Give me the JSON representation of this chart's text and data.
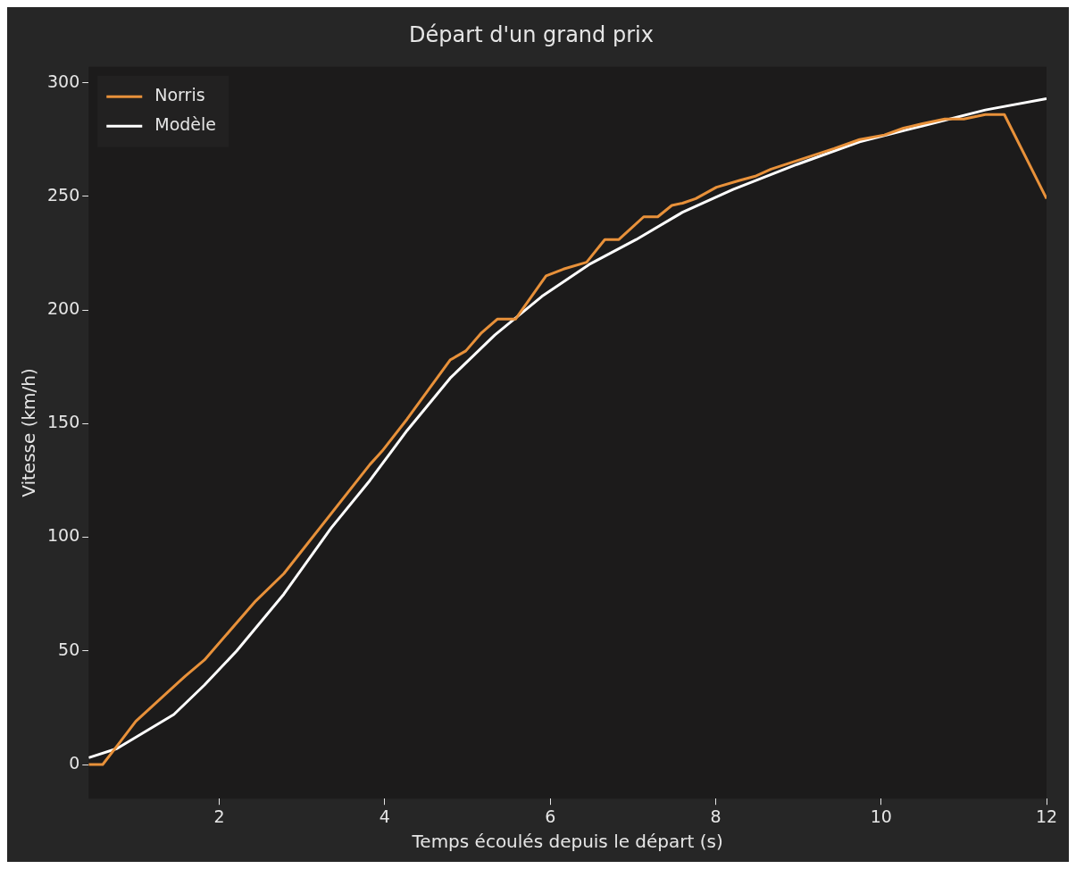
{
  "chart_data": {
    "type": "line",
    "title": "Départ d'un grand prix",
    "xlabel": "Temps écoulés depuis le départ (s)",
    "ylabel": "Vitesse (km/h)",
    "xlim": [
      0.42,
      12
    ],
    "xticks": [
      2,
      4,
      6,
      8,
      10,
      12
    ],
    "ylim": [
      -15,
      307
    ],
    "yticks": [
      0,
      50,
      100,
      150,
      200,
      250,
      300
    ],
    "grid": false,
    "legend": "top left",
    "series": [
      {
        "name": "Norris",
        "color": "#e8913a",
        "x": [
          0.42,
          0.59,
          0.76,
          0.99,
          1.59,
          1.82,
          2.44,
          2.78,
          3.82,
          3.97,
          4.27,
          4.79,
          4.98,
          5.17,
          5.36,
          5.58,
          5.95,
          6.16,
          6.44,
          6.66,
          6.83,
          7.13,
          7.3,
          7.47,
          7.6,
          7.76,
          8.01,
          8.29,
          8.49,
          8.67,
          9.43,
          9.74,
          10.04,
          10.27,
          10.5,
          10.77,
          11.0,
          11.26,
          11.49,
          12.0
        ],
        "values": [
          0,
          0,
          8,
          19,
          39,
          46,
          72,
          84,
          132,
          138,
          152,
          178,
          182,
          190,
          196,
          196,
          215,
          218,
          221,
          231,
          231,
          241,
          241,
          246,
          247,
          249,
          254,
          257,
          259,
          262,
          271,
          275,
          277,
          280,
          282,
          284,
          284,
          286,
          286,
          249
        ]
      },
      {
        "name": "Modèle",
        "color": "#ffffff",
        "x": [
          0.42,
          0.76,
          1.45,
          1.82,
          2.21,
          2.78,
          3.35,
          3.82,
          4.27,
          4.79,
          5.33,
          5.9,
          6.47,
          7.04,
          7.6,
          8.21,
          8.98,
          9.74,
          10.5,
          11.26,
          12.0
        ],
        "values": [
          3,
          7,
          22,
          35,
          50,
          75,
          104,
          125,
          147,
          170,
          189,
          206,
          220,
          231,
          243,
          253,
          264,
          274,
          281,
          288,
          293
        ]
      }
    ]
  }
}
